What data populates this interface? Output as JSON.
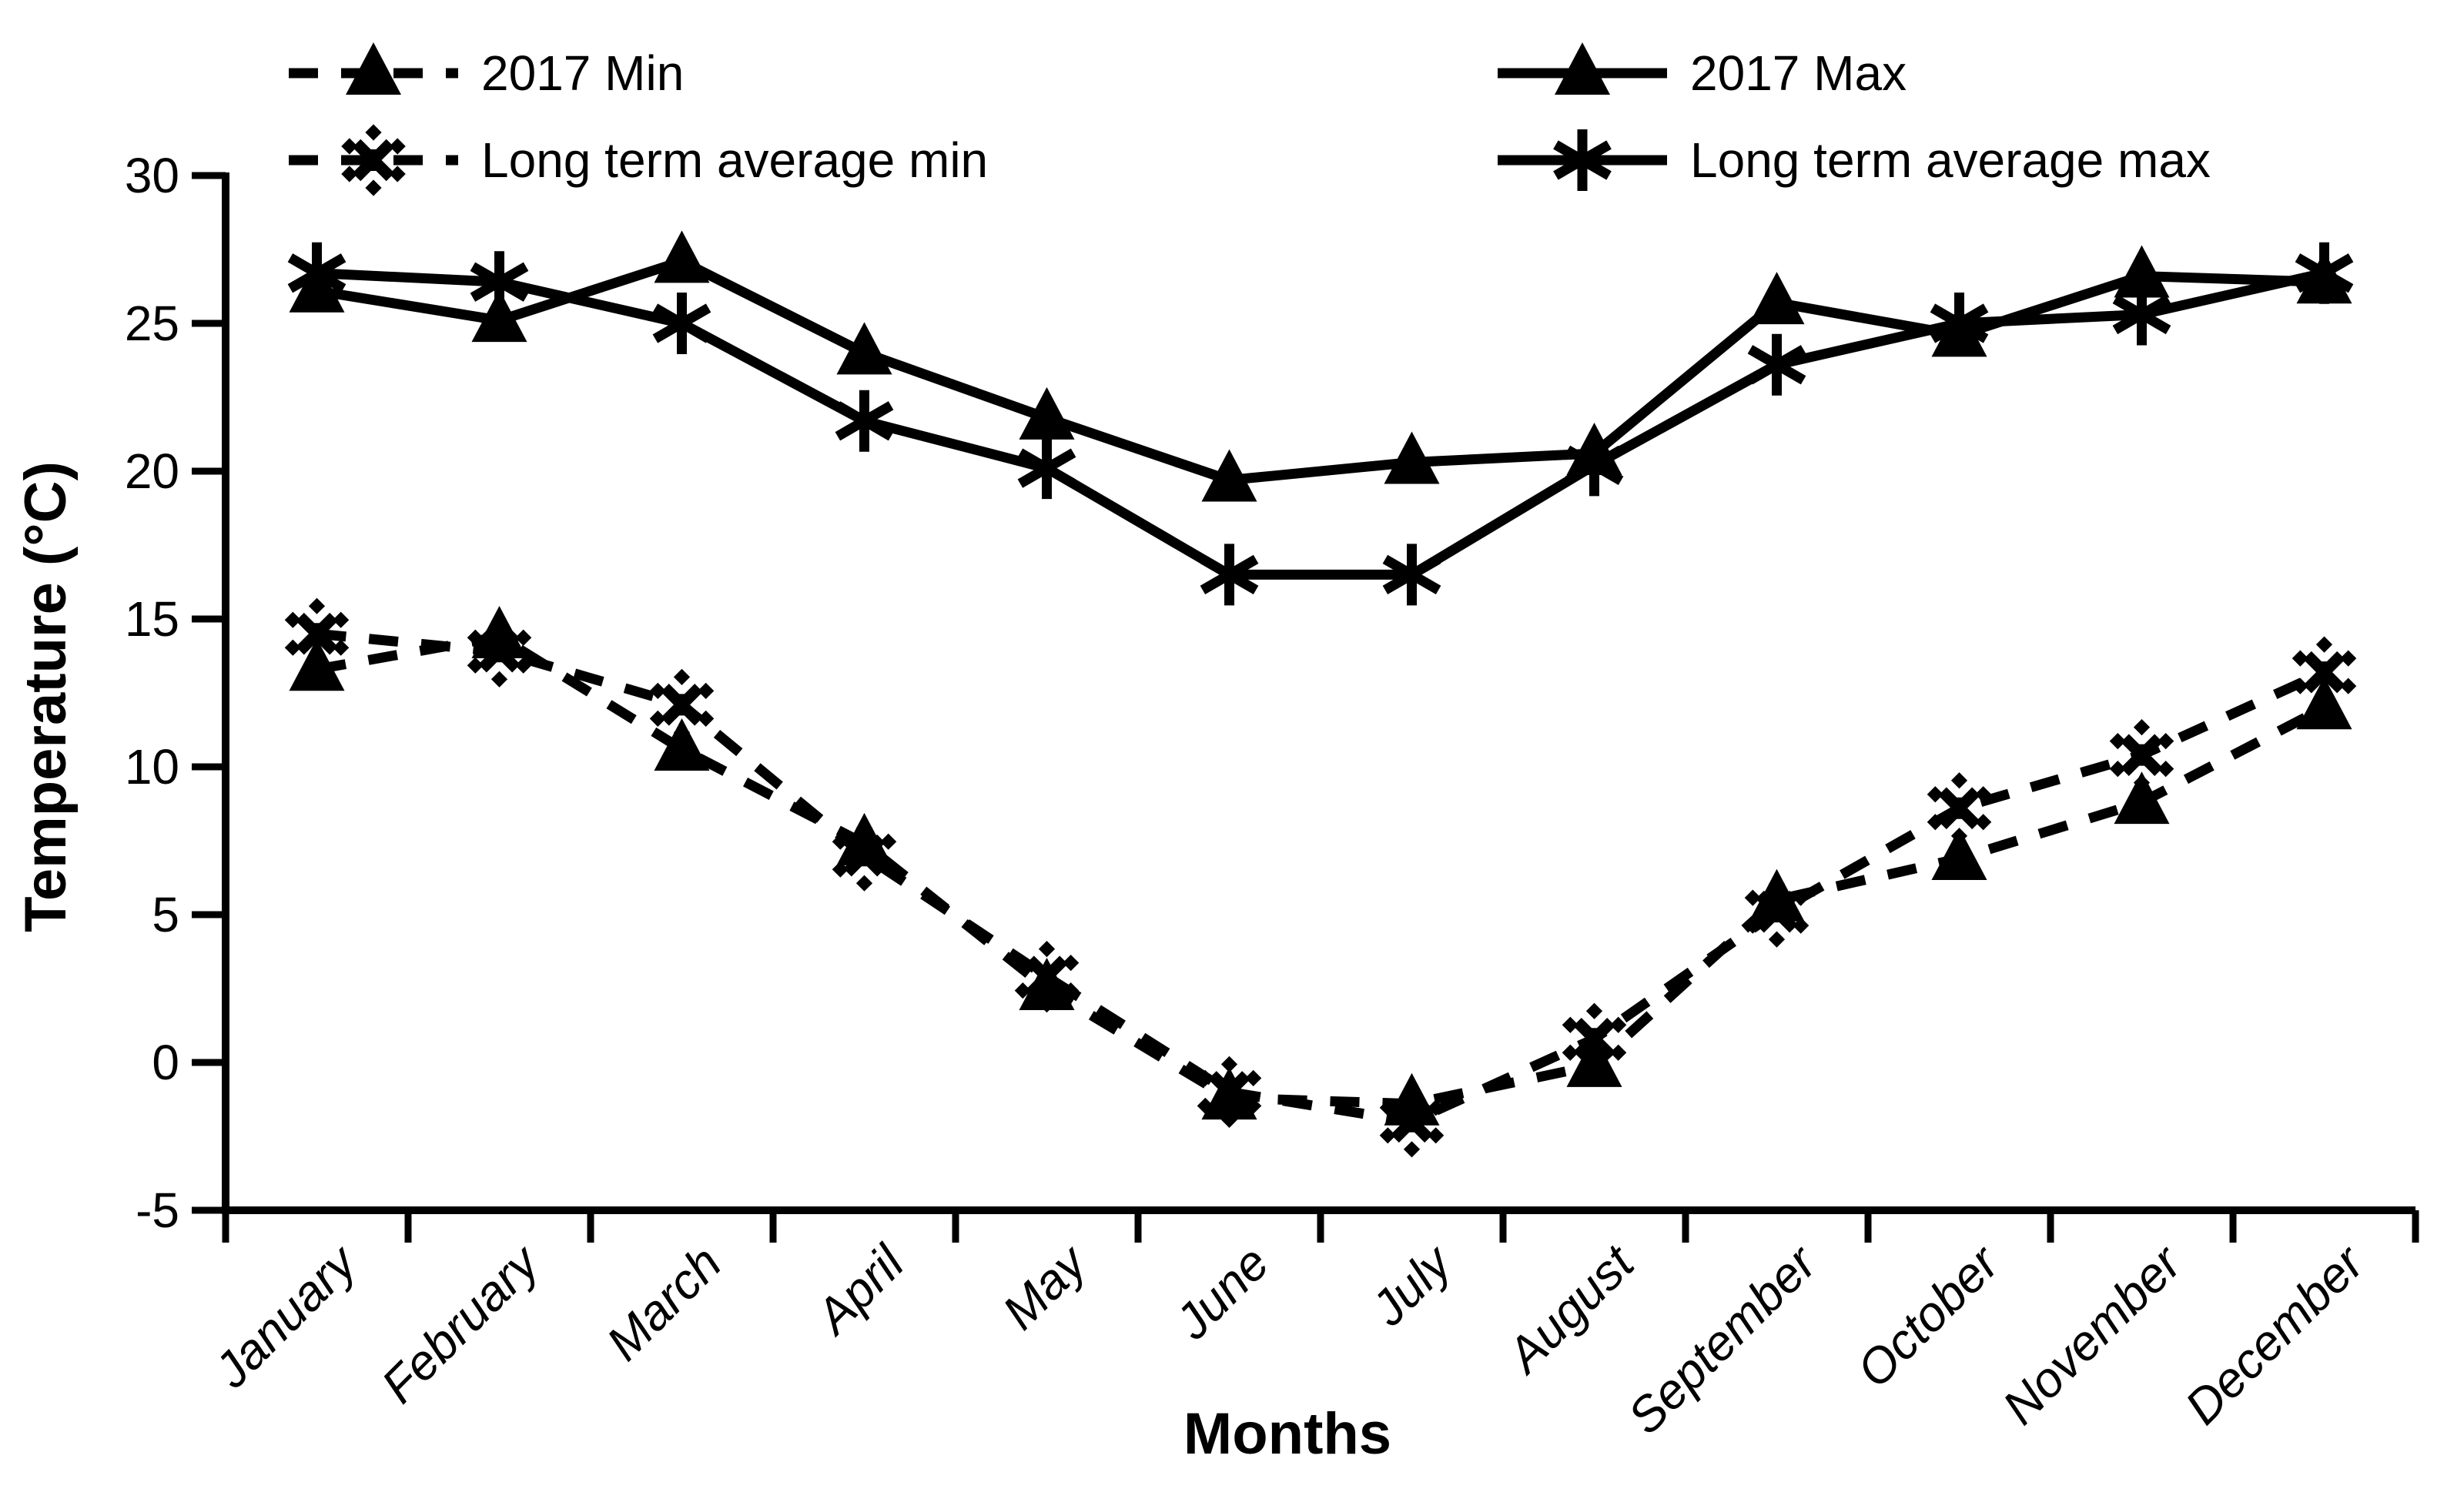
{
  "page": {
    "background_color": "#ffffff",
    "foreground_color": "#000000"
  },
  "chart_data": {
    "type": "line",
    "title": "",
    "xlabel": "Months",
    "ylabel": "Temperature (°C)",
    "ylim": [
      -5,
      30
    ],
    "y_ticks": [
      30,
      25,
      20,
      15,
      10,
      5,
      0,
      -5
    ],
    "grid": false,
    "legend_position": "top (two columns, two rows)",
    "background_color": "#ffffff",
    "foreground_color": "#000000",
    "categories": [
      "January",
      "February",
      "March",
      "April",
      "May",
      "June",
      "July",
      "August",
      "September",
      "October",
      "November",
      "December"
    ],
    "series": [
      {
        "name": "2017 Min",
        "line_style": "dashed",
        "marker": "filled-triangle",
        "color": "#000000",
        "values": [
          13.3,
          14.4,
          10.6,
          7.4,
          2.5,
          -1.2,
          -1.4,
          -0.1,
          5.5,
          6.9,
          8.8,
          12.0
        ]
      },
      {
        "name": "2017 Max",
        "line_style": "solid",
        "marker": "filled-triangle",
        "color": "#000000",
        "values": [
          26.1,
          25.1,
          27.1,
          24.0,
          21.8,
          19.7,
          20.3,
          20.6,
          25.7,
          24.6,
          26.6,
          26.4
        ]
      },
      {
        "name": "Long term average min",
        "line_style": "dashed",
        "marker": "dotted-asterisk",
        "color": "#000000",
        "values": [
          14.5,
          13.9,
          12.1,
          7.0,
          2.9,
          -1.0,
          -2.0,
          0.8,
          5.1,
          8.6,
          10.4,
          13.2
        ]
      },
      {
        "name": "Long term average max",
        "line_style": "solid",
        "marker": "asterisk",
        "color": "#000000",
        "values": [
          26.7,
          26.4,
          25.0,
          21.7,
          20.1,
          16.5,
          16.5,
          20.2,
          23.6,
          25.0,
          25.3,
          26.7
        ]
      }
    ],
    "legend_order": [
      0,
      1,
      2,
      3
    ]
  }
}
